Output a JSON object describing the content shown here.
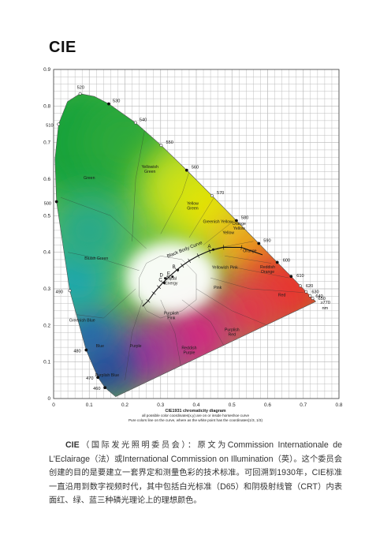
{
  "page": {
    "title": "CIE"
  },
  "chart_data": {
    "type": "diagram",
    "title": "CIE1931 chromaticity diagram",
    "caption_lines": [
      "CIE1931 chromaticity diagram",
      "all possible color coordinates(x,y) are on or inside horseshoe curve",
      "Pure colors line on the curve, where as the white point has the coordinates(1/3, 1/3)"
    ],
    "xlim": [
      0,
      0.8
    ],
    "ylim": [
      0,
      0.9
    ],
    "x_ticks": [
      "0",
      "0.1",
      "0.2",
      "0.3",
      "0.4",
      "0.5",
      "0.6",
      "0.7",
      "0.8"
    ],
    "y_ticks": [
      "0",
      "0.1",
      "0.2",
      "0.3",
      "0.4",
      "0.5",
      "0.6",
      "0.7",
      "0.8",
      "0.9"
    ],
    "grid": true,
    "wavelength_labels": [
      "460",
      "470",
      "480",
      "490",
      "500",
      "510",
      "520",
      "530",
      "540",
      "550",
      "560",
      "570",
      "580",
      "590",
      "600",
      "610",
      "620",
      "630",
      "640",
      "650",
      "≥770",
      "nm"
    ],
    "spectral_locus": [
      {
        "nm": 380,
        "x": 0.1741,
        "y": 0.005
      },
      {
        "nm": 460,
        "x": 0.144,
        "y": 0.0297
      },
      {
        "nm": 470,
        "x": 0.1241,
        "y": 0.0578
      },
      {
        "nm": 480,
        "x": 0.0913,
        "y": 0.1327
      },
      {
        "nm": 490,
        "x": 0.0454,
        "y": 0.295
      },
      {
        "nm": 500,
        "x": 0.0082,
        "y": 0.5384
      },
      {
        "nm": 505,
        "x": 0.0039,
        "y": 0.6548
      },
      {
        "nm": 510,
        "x": 0.0139,
        "y": 0.7502
      },
      {
        "nm": 515,
        "x": 0.0389,
        "y": 0.812
      },
      {
        "nm": 520,
        "x": 0.0743,
        "y": 0.8338
      },
      {
        "nm": 525,
        "x": 0.1142,
        "y": 0.8262
      },
      {
        "nm": 530,
        "x": 0.1547,
        "y": 0.8059
      },
      {
        "nm": 540,
        "x": 0.2296,
        "y": 0.7543
      },
      {
        "nm": 550,
        "x": 0.3016,
        "y": 0.6923
      },
      {
        "nm": 560,
        "x": 0.3731,
        "y": 0.6245
      },
      {
        "nm": 570,
        "x": 0.4441,
        "y": 0.5547
      },
      {
        "nm": 580,
        "x": 0.5125,
        "y": 0.4866
      },
      {
        "nm": 590,
        "x": 0.5752,
        "y": 0.4242
      },
      {
        "nm": 600,
        "x": 0.627,
        "y": 0.3725
      },
      {
        "nm": 610,
        "x": 0.6658,
        "y": 0.334
      },
      {
        "nm": 620,
        "x": 0.6915,
        "y": 0.3083
      },
      {
        "nm": 630,
        "x": 0.7079,
        "y": 0.292
      },
      {
        "nm": 640,
        "x": 0.719,
        "y": 0.2809
      },
      {
        "nm": 650,
        "x": 0.726,
        "y": 0.274
      },
      {
        "nm": 700,
        "x": 0.7347,
        "y": 0.2653
      }
    ],
    "planckian_locus_points": [
      {
        "x": 0.5856,
        "y": 0.3931
      },
      {
        "x": 0.5267,
        "y": 0.4133
      },
      {
        "x": 0.4764,
        "y": 0.4137
      },
      {
        "x": 0.4369,
        "y": 0.4041
      },
      {
        "x": 0.4053,
        "y": 0.3907
      },
      {
        "x": 0.3805,
        "y": 0.3768
      },
      {
        "x": 0.3608,
        "y": 0.3636
      },
      {
        "x": 0.3451,
        "y": 0.3516
      },
      {
        "x": 0.3221,
        "y": 0.3318
      },
      {
        "x": 0.3064,
        "y": 0.3166
      },
      {
        "x": 0.2952,
        "y": 0.3048
      },
      {
        "x": 0.2807,
        "y": 0.2883
      },
      {
        "x": 0.265,
        "y": 0.267
      },
      {
        "x": 0.249,
        "y": 0.252
      }
    ],
    "curve_label": "Black Body Curve",
    "illuminant_points": [
      {
        "label": "A",
        "x": 0.4476,
        "y": 0.4074
      },
      {
        "label": "B",
        "x": 0.3484,
        "y": 0.3516
      },
      {
        "label": "E",
        "x": 0.3333,
        "y": 0.3333
      },
      {
        "label": "D",
        "x": 0.3128,
        "y": 0.329
      },
      {
        "label": "C",
        "x": 0.3101,
        "y": 0.3162
      }
    ],
    "regions": [
      {
        "label_lines": [
          "Green"
        ],
        "x": 0.1,
        "y": 0.6
      },
      {
        "label_lines": [
          "Yellowish",
          "Green"
        ],
        "x": 0.27,
        "y": 0.63
      },
      {
        "label_lines": [
          "Yellow",
          "Green"
        ],
        "x": 0.39,
        "y": 0.53
      },
      {
        "label_lines": [
          "Greenish Yellow"
        ],
        "x": 0.46,
        "y": 0.48
      },
      {
        "label_lines": [
          "Yellow"
        ],
        "x": 0.49,
        "y": 0.45
      },
      {
        "label_lines": [
          "Orange",
          "Yellow"
        ],
        "x": 0.52,
        "y": 0.475
      },
      {
        "label_lines": [
          "Orange"
        ],
        "x": 0.55,
        "y": 0.4
      },
      {
        "label_lines": [
          "Reddish",
          "Orange"
        ],
        "x": 0.6,
        "y": 0.356
      },
      {
        "label_lines": [
          "Red"
        ],
        "x": 0.64,
        "y": 0.28
      },
      {
        "label_lines": [
          "Bluish Green"
        ],
        "x": 0.12,
        "y": 0.38
      },
      {
        "label_lines": [
          "Greenish Blue"
        ],
        "x": 0.08,
        "y": 0.21
      },
      {
        "label_lines": [
          "Blue"
        ],
        "x": 0.13,
        "y": 0.14
      },
      {
        "label_lines": [
          "Purplish Blue"
        ],
        "x": 0.15,
        "y": 0.06
      },
      {
        "label_lines": [
          "Purple"
        ],
        "x": 0.23,
        "y": 0.14
      },
      {
        "label_lines": [
          "Equal",
          "Energy"
        ],
        "x": 0.33,
        "y": 0.325
      },
      {
        "label_lines": [
          "Yellowish Pink"
        ],
        "x": 0.48,
        "y": 0.355
      },
      {
        "label_lines": [
          "Pink"
        ],
        "x": 0.46,
        "y": 0.3
      },
      {
        "label_lines": [
          "Purplish",
          "Pink"
        ],
        "x": 0.33,
        "y": 0.23
      },
      {
        "label_lines": [
          "Purplish",
          "Red"
        ],
        "x": 0.5,
        "y": 0.185
      },
      {
        "label_lines": [
          "Reddish",
          "Purple"
        ],
        "x": 0.38,
        "y": 0.135
      }
    ],
    "colors": {
      "green": "#17a23a",
      "yellow": "#e8e600",
      "orange": "#f39a16",
      "red": "#e8342a",
      "blue": "#1b3b9c",
      "magenta": "#d3287f",
      "cyan": "#18a5b7",
      "grid": "#b8b8b8",
      "frame": "#444444"
    }
  },
  "body": {
    "prefix": "CIE",
    "text1": "（国际发光照明委员会）：原文为",
    "en1": "Commission Internationale de L'Eclairage",
    "text2": "（法）或",
    "en2": "International Commission on Illumination",
    "text3": "（英）。这个委员会创建的目的是要建立一套界定和测量色彩的技术标准。可回溯到",
    "year": "1930",
    "text4": "年，",
    "cie": "CIE",
    "text5": "标准一直沿用到数字视频时代，其中包括白光标准（",
    "d65": "D65",
    "text6": "）和阴极射线管（",
    "crt": "CRT",
    "text7": "）内表面红、绿、蓝三种磷光理论上的理想颜色。"
  }
}
